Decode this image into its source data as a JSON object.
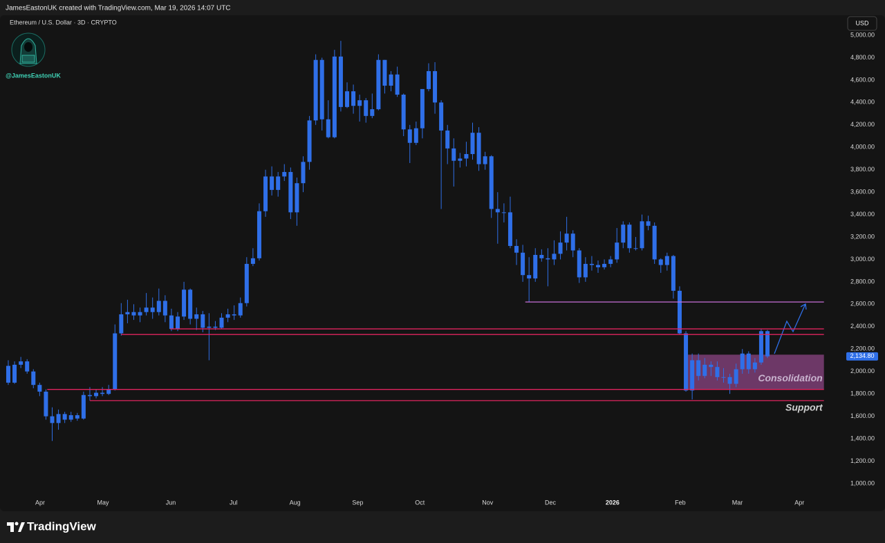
{
  "header": {
    "credit": "JamesEastonUK created with TradingView.com, Mar 19, 2026 14:07 UTC",
    "brand": "TradingView"
  },
  "chart_data": {
    "type": "candlestick",
    "title": "Ethereum / U.S. Dollar · 3D · CRYPTO",
    "watermark": "@JamesEastonUK",
    "currency": "USD",
    "color": "#2f6fe8",
    "open": [
      2050,
      1900,
      2060,
      2090,
      2000,
      1880,
      1820,
      1600,
      1540,
      1620,
      1570,
      1610,
      1580,
      1790,
      1780,
      1810,
      1800,
      1840,
      2340,
      2510,
      2530,
      2500,
      2530,
      2570,
      2530,
      2630,
      2500,
      2380,
      2490,
      2730,
      2470,
      2510,
      2390,
      2400,
      2390,
      2480,
      2510,
      2500,
      2610,
      2960,
      3010,
      3430,
      3740,
      3620,
      3740,
      3780,
      3420,
      3680,
      3870,
      4240,
      4780,
      4250,
      4090,
      4810,
      4360,
      4500,
      4370,
      4420,
      4280,
      4340,
      4780,
      4550,
      4650,
      4470,
      4160,
      4040,
      4170,
      4520,
      4680,
      4400,
      4150,
      3990,
      3880,
      3900,
      3940,
      4130,
      3850,
      3920,
      3450,
      3420,
      3420,
      3120,
      3060,
      2860,
      2830,
      3040,
      3010,
      3000,
      3050,
      3150,
      3230,
      3080,
      2840,
      2960,
      2950,
      2930,
      2960,
      3000,
      3150,
      3310,
      3100,
      3100,
      3340,
      3300,
      3000,
      2950,
      3030,
      2720,
      2340,
      1830,
      2100,
      1960,
      2060,
      2040,
      1950,
      1950,
      1890,
      2020,
      2160,
      2020,
      2080,
      2360
    ],
    "high": [
      2100,
      2090,
      2130,
      2110,
      2020,
      1900,
      1840,
      1680,
      1660,
      1640,
      1640,
      1630,
      1820,
      1860,
      1840,
      1860,
      1880,
      2420,
      2610,
      2640,
      2600,
      2570,
      2700,
      2660,
      2740,
      2680,
      2560,
      2530,
      2800,
      2740,
      2570,
      2540,
      2520,
      2450,
      2520,
      2560,
      2590,
      2660,
      3020,
      3100,
      3500,
      3800,
      3830,
      3780,
      3850,
      3820,
      3730,
      3920,
      4280,
      4830,
      4800,
      4420,
      4870,
      4950,
      4580,
      4560,
      4470,
      4440,
      4480,
      4830,
      4780,
      4680,
      4720,
      4480,
      4200,
      4230,
      4520,
      4750,
      4760,
      4420,
      4200,
      4080,
      3950,
      4050,
      4220,
      4180,
      3960,
      3930,
      3600,
      3500,
      3560,
      3180,
      3130,
      3020,
      3100,
      3090,
      3100,
      3170,
      3250,
      3380,
      3260,
      3100,
      3020,
      3030,
      2990,
      3000,
      3030,
      3280,
      3340,
      3330,
      3200,
      3400,
      3390,
      3330,
      3010,
      3060,
      3040,
      2760,
      2360,
      2160,
      2160,
      2120,
      2090,
      2090,
      2030,
      1980,
      2070,
      2200,
      2180,
      2120,
      2380,
      2370
    ],
    "low": [
      1880,
      1890,
      2030,
      1980,
      1850,
      1780,
      1570,
      1380,
      1480,
      1540,
      1550,
      1560,
      1570,
      1740,
      1760,
      1780,
      1790,
      1830,
      2320,
      2430,
      2460,
      2440,
      2500,
      2470,
      2500,
      2440,
      2360,
      2360,
      2460,
      2420,
      2370,
      2350,
      2100,
      2370,
      2380,
      2440,
      2460,
      2480,
      2580,
      2940,
      2990,
      3380,
      3570,
      3560,
      3700,
      3360,
      3300,
      3600,
      3800,
      4200,
      4150,
      4080,
      4080,
      4320,
      4350,
      4300,
      4230,
      4220,
      4260,
      4330,
      4480,
      4500,
      4450,
      4100,
      3860,
      4020,
      4080,
      4500,
      4300,
      3450,
      3850,
      3650,
      3820,
      3830,
      3890,
      3790,
      3800,
      3370,
      3140,
      3330,
      3100,
      2950,
      2800,
      2620,
      2800,
      2980,
      2760,
      2950,
      3000,
      3080,
      3020,
      2790,
      2800,
      2900,
      2880,
      2910,
      2930,
      2970,
      3100,
      3060,
      3080,
      3080,
      3260,
      2960,
      2880,
      2900,
      2650,
      2330,
      1820,
      1750,
      1920,
      1940,
      1960,
      1920,
      1900,
      1800,
      1860,
      1980,
      1980,
      1990,
      2060,
      2120
    ],
    "close": [
      1900,
      2060,
      2090,
      2000,
      1880,
      1820,
      1600,
      1540,
      1620,
      1570,
      1610,
      1580,
      1790,
      1780,
      1810,
      1800,
      1840,
      2340,
      2510,
      2530,
      2500,
      2530,
      2570,
      2530,
      2630,
      2500,
      2380,
      2490,
      2730,
      2470,
      2510,
      2390,
      2400,
      2390,
      2480,
      2510,
      2500,
      2610,
      2960,
      3010,
      3430,
      3740,
      3620,
      3740,
      3780,
      3420,
      3680,
      3870,
      4240,
      4780,
      4250,
      4090,
      4810,
      4360,
      4500,
      4370,
      4420,
      4280,
      4340,
      4780,
      4550,
      4650,
      4470,
      4160,
      4040,
      4170,
      4520,
      4680,
      4400,
      4150,
      3990,
      3880,
      3900,
      3940,
      4130,
      3850,
      3920,
      3450,
      3420,
      3420,
      3120,
      3060,
      2860,
      2830,
      3040,
      3010,
      3000,
      3050,
      3150,
      3230,
      3080,
      2840,
      2960,
      2950,
      2930,
      2960,
      3000,
      3150,
      3310,
      3100,
      3100,
      3340,
      3300,
      3000,
      2950,
      3030,
      2720,
      2340,
      1830,
      2100,
      1960,
      2060,
      2040,
      1950,
      1950,
      1890,
      2020,
      2160,
      2020,
      2080,
      2360,
      2134.8
    ],
    "last_price": {
      "value": 2134.8,
      "label": "2,134.80"
    },
    "xlim": [
      -1.32,
      132.9
    ],
    "xticks": [
      {
        "value": 5.07,
        "label": "Apr"
      },
      {
        "value": 15.1,
        "label": "May"
      },
      {
        "value": 25.9,
        "label": "Jun"
      },
      {
        "value": 35.9,
        "label": "Jul"
      },
      {
        "value": 45.7,
        "label": "Aug"
      },
      {
        "value": 55.7,
        "label": "Sep"
      },
      {
        "value": 65.6,
        "label": "Oct"
      },
      {
        "value": 76.4,
        "label": "Nov"
      },
      {
        "value": 86.4,
        "label": "Dec"
      },
      {
        "value": 96.3,
        "label": "2026"
      },
      {
        "value": 107.1,
        "label": "Feb"
      },
      {
        "value": 116.2,
        "label": "Mar"
      },
      {
        "value": 126.1,
        "label": "Apr"
      }
    ],
    "ylim": [
      753,
      5179
    ],
    "yticks": [
      {
        "value": 1000,
        "label": "1,000.00"
      },
      {
        "value": 1200,
        "label": "1,200.00"
      },
      {
        "value": 1400,
        "label": "1,400.00"
      },
      {
        "value": 1600,
        "label": "1,600.00"
      },
      {
        "value": 1800,
        "label": "1,800.00"
      },
      {
        "value": 2000,
        "label": "2,000.00"
      },
      {
        "value": 2200,
        "label": "2,200.00"
      },
      {
        "value": 2400,
        "label": "2,400.00"
      },
      {
        "value": 2600,
        "label": "2,600.00"
      },
      {
        "value": 2800,
        "label": "2,800.00"
      },
      {
        "value": 3000,
        "label": "3,000.00"
      },
      {
        "value": 3200,
        "label": "3,200.00"
      },
      {
        "value": 3400,
        "label": "3,400.00"
      },
      {
        "value": 3600,
        "label": "3,600.00"
      },
      {
        "value": 3800,
        "label": "3,800.00"
      },
      {
        "value": 4000,
        "label": "4,000.00"
      },
      {
        "value": 4200,
        "label": "4,200.00"
      },
      {
        "value": 4400,
        "label": "4,400.00"
      },
      {
        "value": 4600,
        "label": "4,600.00"
      },
      {
        "value": 4800,
        "label": "4,800.00"
      },
      {
        "value": 5000,
        "label": "5,000.00"
      }
    ],
    "levels": [
      {
        "value": 2620,
        "start": 82.4,
        "end": 130,
        "color": "#c86fd9"
      },
      {
        "value": 2380,
        "start": 25.8,
        "end": 130,
        "color": "#e0245e"
      },
      {
        "value": 2330,
        "start": 18,
        "end": 130,
        "color": "#e0245e"
      },
      {
        "value": 1840,
        "start": 6.2,
        "end": 130,
        "color": "#e0245e"
      },
      {
        "value": 1740,
        "start": 13,
        "end": 130,
        "color": "#e0245e",
        "label": "Support"
      }
    ],
    "zones": [
      {
        "name": "Consolidation",
        "low": 1840,
        "high": 2150,
        "start": 107.8,
        "end": 130,
        "color": "#a9509f"
      }
    ]
  }
}
